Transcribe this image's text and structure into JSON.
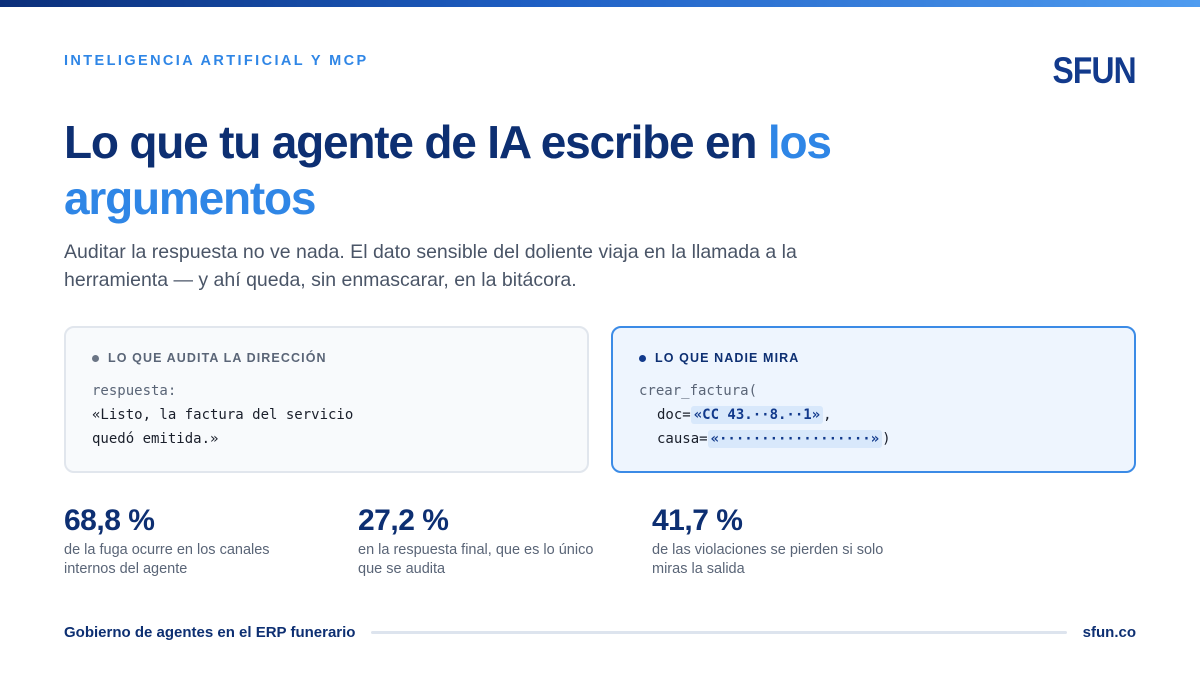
{
  "eyebrow": "INTELIGENCIA ARTIFICIAL Y MCP",
  "logo": "SFUN",
  "title": {
    "main": "Lo que tu agente de IA escribe en ",
    "highlight": "los argumentos"
  },
  "subtitle": "Auditar la respuesta no ve nada. El dato sensible del doliente viaja en la llamada a la herramienta — y ahí queda, sin enmascarar, en la bitácora.",
  "cards": {
    "left": {
      "label": "LO QUE AUDITA LA DIRECCIÓN",
      "line1": "respuesta:",
      "line2": "«Listo, la factura del servicio",
      "line3": "quedó emitida.»"
    },
    "right": {
      "label": "LO QUE NADIE MIRA",
      "line1": "crear_factura(",
      "doc_key": "doc=",
      "doc_value": "«CC 43.··8.··1»",
      "doc_suffix": ",",
      "causa_key": "causa=",
      "causa_value": "«··················»",
      "causa_suffix": ")"
    }
  },
  "stats": [
    {
      "value": "68,8 %",
      "desc": "de la fuga ocurre en los canales internos del agente"
    },
    {
      "value": "27,2 %",
      "desc": "en la respuesta final, que es lo único que se audita"
    },
    {
      "value": "41,7 %",
      "desc": "de las violaciones se pierden si solo miras la salida"
    }
  ],
  "footer": {
    "left": "Gobierno de agentes en el ERP funerario",
    "right": "sfun.co"
  },
  "colors": {
    "navy": "#0d2f72",
    "accent": "#2f86e6",
    "muted": "#5a6577"
  }
}
